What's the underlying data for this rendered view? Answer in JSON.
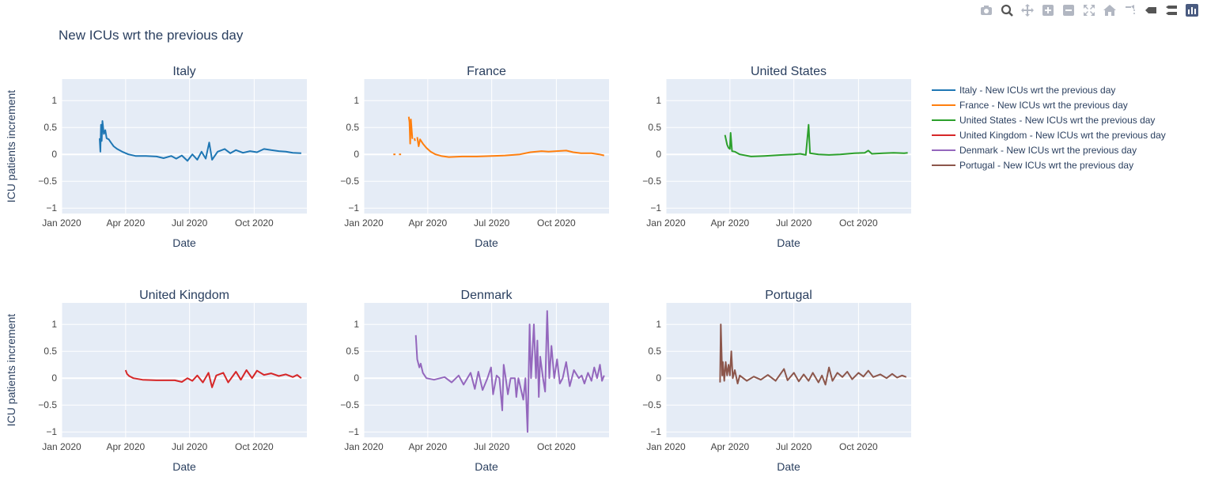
{
  "toolbar": {
    "buttons": [
      {
        "name": "download-plot-icon"
      },
      {
        "name": "zoom-icon"
      },
      {
        "name": "pan-icon"
      },
      {
        "name": "zoom-in-icon"
      },
      {
        "name": "zoom-out-icon"
      },
      {
        "name": "autoscale-icon"
      },
      {
        "name": "reset-axes-icon"
      },
      {
        "name": "spike-lines-icon"
      },
      {
        "name": "hover-closest-icon"
      },
      {
        "name": "hover-compare-icon"
      },
      {
        "name": "plotly-logo-icon"
      }
    ]
  },
  "colors": {
    "plot_bg": "#e5ecf6",
    "grid": "#ffffff",
    "text": "#2a3f5f",
    "axis_text": "#444444",
    "toolbar_icon": "#b2b7c2",
    "logo": "#4a5b80"
  },
  "chart_data": {
    "type": "line",
    "title": "New ICUs wrt the previous day",
    "ylabel": "ICU patients increment",
    "xlabel": "Date",
    "x_range": [
      "2020-01-01",
      "2020-12-15"
    ],
    "ylim": [
      -1.1,
      1.4
    ],
    "x_ticks": [
      {
        "date": "2020-01-01",
        "label": "Jan 2020"
      },
      {
        "date": "2020-04-01",
        "label": "Apr 2020"
      },
      {
        "date": "2020-07-01",
        "label": "Jul 2020"
      },
      {
        "date": "2020-10-01",
        "label": "Oct 2020"
      }
    ],
    "y_ticks": [
      {
        "value": 1,
        "label": "1"
      },
      {
        "value": 0.5,
        "label": "0.5"
      },
      {
        "value": 0,
        "label": "0"
      },
      {
        "value": -0.5,
        "label": "−0.5"
      },
      {
        "value": -1,
        "label": "−1"
      }
    ],
    "grid": true,
    "legend_position": "right",
    "series": [
      {
        "name": "Italy - New ICUs wrt the previous day",
        "subplot_title": "Italy",
        "color": "#1f77b4",
        "points": [
          [
            "2020-02-24",
            0.3
          ],
          [
            "2020-02-25",
            0.05
          ],
          [
            "2020-02-26",
            0.55
          ],
          [
            "2020-02-27",
            0.25
          ],
          [
            "2020-02-28",
            0.62
          ],
          [
            "2020-03-01",
            0.38
          ],
          [
            "2020-03-03",
            0.45
          ],
          [
            "2020-03-05",
            0.3
          ],
          [
            "2020-03-08",
            0.28
          ],
          [
            "2020-03-11",
            0.22
          ],
          [
            "2020-03-15",
            0.15
          ],
          [
            "2020-03-20",
            0.1
          ],
          [
            "2020-03-27",
            0.05
          ],
          [
            "2020-04-05",
            0.0
          ],
          [
            "2020-04-15",
            -0.03
          ],
          [
            "2020-04-30",
            -0.03
          ],
          [
            "2020-05-15",
            -0.04
          ],
          [
            "2020-05-25",
            -0.07
          ],
          [
            "2020-06-05",
            -0.03
          ],
          [
            "2020-06-12",
            -0.08
          ],
          [
            "2020-06-20",
            -0.02
          ],
          [
            "2020-06-28",
            -0.12
          ],
          [
            "2020-07-05",
            0.0
          ],
          [
            "2020-07-12",
            -0.1
          ],
          [
            "2020-07-18",
            0.05
          ],
          [
            "2020-07-24",
            -0.08
          ],
          [
            "2020-07-29",
            0.22
          ],
          [
            "2020-08-02",
            -0.1
          ],
          [
            "2020-08-10",
            0.05
          ],
          [
            "2020-08-20",
            0.1
          ],
          [
            "2020-08-28",
            0.02
          ],
          [
            "2020-09-05",
            0.08
          ],
          [
            "2020-09-15",
            0.03
          ],
          [
            "2020-09-25",
            0.06
          ],
          [
            "2020-10-05",
            0.04
          ],
          [
            "2020-10-15",
            0.1
          ],
          [
            "2020-10-25",
            0.08
          ],
          [
            "2020-11-05",
            0.06
          ],
          [
            "2020-11-15",
            0.05
          ],
          [
            "2020-11-25",
            0.03
          ],
          [
            "2020-12-07",
            0.02
          ]
        ]
      },
      {
        "name": "France - New ICUs wrt the previous day",
        "subplot_title": "France",
        "color": "#ff7f0e",
        "segments": [
          [
            [
              "2020-02-12",
              0.0
            ],
            [
              "2020-02-15",
              0.0
            ]
          ],
          [
            [
              "2020-02-20",
              0.0
            ],
            [
              "2020-02-23",
              0.0
            ]
          ],
          [
            [
              "2020-03-05",
              0.7
            ],
            [
              "2020-03-06",
              0.6
            ],
            [
              "2020-03-07",
              0.2
            ],
            [
              "2020-03-08",
              0.65
            ],
            [
              "2020-03-10",
              0.3
            ],
            [
              "2020-03-11",
              0.3
            ]
          ],
          [
            [
              "2020-03-13",
              0.3
            ],
            [
              "2020-03-14",
              0.25
            ]
          ],
          [
            [
              "2020-03-17",
              0.32
            ],
            [
              "2020-03-19",
              0.15
            ],
            [
              "2020-03-21",
              0.28
            ],
            [
              "2020-03-25",
              0.2
            ],
            [
              "2020-03-30",
              0.12
            ],
            [
              "2020-04-05",
              0.05
            ],
            [
              "2020-04-12",
              0.0
            ],
            [
              "2020-04-20",
              -0.03
            ],
            [
              "2020-05-01",
              -0.05
            ],
            [
              "2020-05-20",
              -0.04
            ],
            [
              "2020-06-10",
              -0.04
            ],
            [
              "2020-07-01",
              -0.03
            ],
            [
              "2020-07-20",
              -0.02
            ],
            [
              "2020-08-10",
              0.0
            ],
            [
              "2020-08-25",
              0.04
            ],
            [
              "2020-09-10",
              0.06
            ],
            [
              "2020-09-20",
              0.05
            ],
            [
              "2020-10-01",
              0.06
            ],
            [
              "2020-10-15",
              0.07
            ],
            [
              "2020-10-25",
              0.04
            ],
            [
              "2020-11-05",
              0.02
            ],
            [
              "2020-11-20",
              0.02
            ],
            [
              "2020-12-01",
              0.0
            ],
            [
              "2020-12-08",
              -0.02
            ]
          ]
        ]
      },
      {
        "name": "United States - New ICUs wrt the previous day",
        "subplot_title": "United States",
        "color": "#2ca02c",
        "points": [
          [
            "2020-03-25",
            0.36
          ],
          [
            "2020-03-28",
            0.18
          ],
          [
            "2020-03-30",
            0.12
          ],
          [
            "2020-04-01",
            0.1
          ],
          [
            "2020-04-02",
            0.4
          ],
          [
            "2020-04-04",
            0.06
          ],
          [
            "2020-04-08",
            0.05
          ],
          [
            "2020-04-15",
            0.0
          ],
          [
            "2020-05-01",
            -0.04
          ],
          [
            "2020-05-20",
            -0.03
          ],
          [
            "2020-06-15",
            -0.01
          ],
          [
            "2020-07-01",
            0.0
          ],
          [
            "2020-07-10",
            0.01
          ],
          [
            "2020-07-18",
            -0.01
          ],
          [
            "2020-07-22",
            0.55
          ],
          [
            "2020-07-24",
            0.02
          ],
          [
            "2020-08-05",
            0.0
          ],
          [
            "2020-08-20",
            -0.01
          ],
          [
            "2020-09-05",
            0.0
          ],
          [
            "2020-09-25",
            0.02
          ],
          [
            "2020-10-10",
            0.03
          ],
          [
            "2020-10-15",
            0.07
          ],
          [
            "2020-10-20",
            0.01
          ],
          [
            "2020-11-05",
            0.02
          ],
          [
            "2020-11-20",
            0.03
          ],
          [
            "2020-12-05",
            0.02
          ],
          [
            "2020-12-10",
            0.03
          ]
        ]
      },
      {
        "name": "United Kingdom - New ICUs wrt the previous day",
        "subplot_title": "United Kingdom",
        "color": "#d62728",
        "points": [
          [
            "2020-04-01",
            0.15
          ],
          [
            "2020-04-03",
            0.08
          ],
          [
            "2020-04-06",
            0.04
          ],
          [
            "2020-04-12",
            0.0
          ],
          [
            "2020-04-25",
            -0.03
          ],
          [
            "2020-05-15",
            -0.04
          ],
          [
            "2020-06-10",
            -0.04
          ],
          [
            "2020-06-20",
            -0.07
          ],
          [
            "2020-06-28",
            0.0
          ],
          [
            "2020-07-05",
            -0.05
          ],
          [
            "2020-07-12",
            0.05
          ],
          [
            "2020-07-20",
            -0.08
          ],
          [
            "2020-07-28",
            0.1
          ],
          [
            "2020-08-02",
            -0.17
          ],
          [
            "2020-08-08",
            0.05
          ],
          [
            "2020-08-18",
            0.1
          ],
          [
            "2020-08-25",
            -0.08
          ],
          [
            "2020-09-05",
            0.12
          ],
          [
            "2020-09-12",
            -0.03
          ],
          [
            "2020-09-20",
            0.15
          ],
          [
            "2020-09-28",
            0.0
          ],
          [
            "2020-10-05",
            0.14
          ],
          [
            "2020-10-15",
            0.06
          ],
          [
            "2020-10-25",
            0.09
          ],
          [
            "2020-11-05",
            0.04
          ],
          [
            "2020-11-15",
            0.07
          ],
          [
            "2020-11-25",
            0.02
          ],
          [
            "2020-12-01",
            0.06
          ],
          [
            "2020-12-07",
            0.0
          ]
        ]
      },
      {
        "name": "Denmark - New ICUs wrt the previous day",
        "subplot_title": "Denmark",
        "color": "#9467bd",
        "points": [
          [
            "2020-03-15",
            0.8
          ],
          [
            "2020-03-17",
            0.35
          ],
          [
            "2020-03-20",
            0.2
          ],
          [
            "2020-03-22",
            0.27
          ],
          [
            "2020-03-25",
            0.1
          ],
          [
            "2020-03-30",
            0.0
          ],
          [
            "2020-04-10",
            -0.03
          ],
          [
            "2020-04-25",
            0.02
          ],
          [
            "2020-05-05",
            -0.08
          ],
          [
            "2020-05-15",
            0.05
          ],
          [
            "2020-05-22",
            -0.12
          ],
          [
            "2020-06-01",
            0.1
          ],
          [
            "2020-06-07",
            -0.2
          ],
          [
            "2020-06-12",
            0.12
          ],
          [
            "2020-06-18",
            -0.22
          ],
          [
            "2020-06-25",
            0.0
          ],
          [
            "2020-06-30",
            0.2
          ],
          [
            "2020-07-03",
            -0.3
          ],
          [
            "2020-07-08",
            0.05
          ],
          [
            "2020-07-12",
            0.0
          ],
          [
            "2020-07-16",
            -0.6
          ],
          [
            "2020-07-18",
            0.25
          ],
          [
            "2020-07-21",
            0.0
          ],
          [
            "2020-07-24",
            -0.3
          ],
          [
            "2020-07-28",
            0.0
          ],
          [
            "2020-08-03",
            0.0
          ],
          [
            "2020-08-05",
            -0.35
          ],
          [
            "2020-08-08",
            0.0
          ],
          [
            "2020-08-15",
            -0.4
          ],
          [
            "2020-08-18",
            0.0
          ],
          [
            "2020-08-21",
            -1.0
          ],
          [
            "2020-08-24",
            1.0
          ],
          [
            "2020-08-26",
            0.0
          ],
          [
            "2020-08-30",
            1.0
          ],
          [
            "2020-09-02",
            0.0
          ],
          [
            "2020-09-04",
            0.7
          ],
          [
            "2020-09-06",
            -0.35
          ],
          [
            "2020-09-08",
            0.4
          ],
          [
            "2020-09-12",
            0.0
          ],
          [
            "2020-09-15",
            -0.25
          ],
          [
            "2020-09-18",
            1.25
          ],
          [
            "2020-09-21",
            0.0
          ],
          [
            "2020-09-24",
            0.6
          ],
          [
            "2020-09-28",
            0.0
          ],
          [
            "2020-10-02",
            0.35
          ],
          [
            "2020-10-06",
            -0.1
          ],
          [
            "2020-10-10",
            0.0
          ],
          [
            "2020-10-15",
            0.3
          ],
          [
            "2020-10-20",
            -0.15
          ],
          [
            "2020-10-26",
            0.15
          ],
          [
            "2020-11-02",
            0.0
          ],
          [
            "2020-11-06",
            0.05
          ],
          [
            "2020-11-10",
            -0.1
          ],
          [
            "2020-11-15",
            0.1
          ],
          [
            "2020-11-20",
            -0.05
          ],
          [
            "2020-11-24",
            0.2
          ],
          [
            "2020-11-28",
            0.0
          ],
          [
            "2020-12-02",
            0.25
          ],
          [
            "2020-12-05",
            -0.05
          ],
          [
            "2020-12-08",
            0.05
          ]
        ]
      },
      {
        "name": "Portugal - New ICUs wrt the previous day",
        "subplot_title": "Portugal",
        "color": "#8c564b",
        "points": [
          [
            "2020-03-18",
            -0.08
          ],
          [
            "2020-03-19",
            1.0
          ],
          [
            "2020-03-21",
            0.05
          ],
          [
            "2020-03-22",
            0.3
          ],
          [
            "2020-03-24",
            -0.05
          ],
          [
            "2020-03-26",
            0.3
          ],
          [
            "2020-03-28",
            0.05
          ],
          [
            "2020-03-30",
            0.25
          ],
          [
            "2020-04-01",
            0.05
          ],
          [
            "2020-04-03",
            0.5
          ],
          [
            "2020-04-05",
            0.0
          ],
          [
            "2020-04-08",
            0.15
          ],
          [
            "2020-04-12",
            -0.1
          ],
          [
            "2020-04-15",
            0.05
          ],
          [
            "2020-04-20",
            0.0
          ],
          [
            "2020-04-25",
            -0.05
          ],
          [
            "2020-05-05",
            0.03
          ],
          [
            "2020-05-15",
            -0.03
          ],
          [
            "2020-05-25",
            0.06
          ],
          [
            "2020-06-05",
            -0.05
          ],
          [
            "2020-06-12",
            0.08
          ],
          [
            "2020-06-17",
            0.17
          ],
          [
            "2020-06-22",
            -0.04
          ],
          [
            "2020-07-01",
            0.1
          ],
          [
            "2020-07-08",
            -0.06
          ],
          [
            "2020-07-15",
            0.07
          ],
          [
            "2020-07-22",
            -0.05
          ],
          [
            "2020-07-28",
            0.1
          ],
          [
            "2020-08-05",
            -0.08
          ],
          [
            "2020-08-10",
            0.05
          ],
          [
            "2020-08-15",
            -0.12
          ],
          [
            "2020-08-20",
            0.2
          ],
          [
            "2020-08-25",
            -0.05
          ],
          [
            "2020-09-01",
            0.1
          ],
          [
            "2020-09-08",
            0.02
          ],
          [
            "2020-09-15",
            0.12
          ],
          [
            "2020-09-22",
            -0.02
          ],
          [
            "2020-10-01",
            0.1
          ],
          [
            "2020-10-08",
            0.03
          ],
          [
            "2020-10-15",
            0.14
          ],
          [
            "2020-10-22",
            0.02
          ],
          [
            "2020-11-01",
            0.07
          ],
          [
            "2020-11-10",
            0.0
          ],
          [
            "2020-11-18",
            0.08
          ],
          [
            "2020-11-25",
            0.01
          ],
          [
            "2020-12-02",
            0.05
          ],
          [
            "2020-12-08",
            0.02
          ]
        ]
      }
    ]
  }
}
